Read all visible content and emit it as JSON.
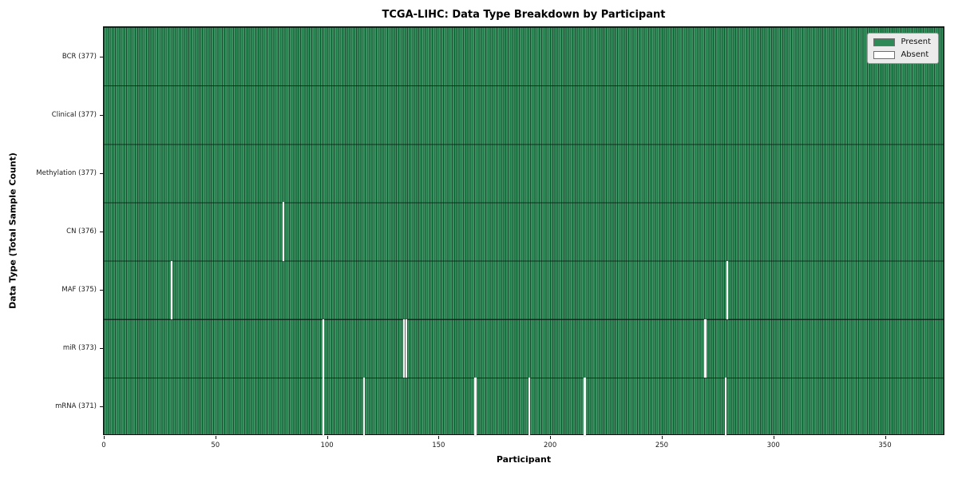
{
  "chart_data": {
    "type": "heatmap",
    "title": "TCGA-LIHC: Data Type Breakdown by Participant",
    "xlabel": "Participant",
    "ylabel": "Data Type (Total Sample Count)",
    "legend_position": "upper right",
    "legend": [
      {
        "name": "present",
        "label": "Present",
        "color": "#2e8b57"
      },
      {
        "name": "absent",
        "label": "Absent",
        "color": "#ffffff"
      }
    ],
    "colors": {
      "present_fill": "#2e8b57",
      "present_stripe_light": "#36935f",
      "cell_edge_dark": "#1e5034",
      "absent_fill": "#f8f8f8",
      "legend_background": "#ebebeb"
    },
    "x_ticks": [
      0,
      50,
      100,
      150,
      200,
      250,
      300,
      350
    ],
    "x_range": [
      0,
      377
    ],
    "n_participants": 377,
    "grid": "cell-edges",
    "rows": [
      {
        "label": "BCR (377)",
        "data_type": "BCR",
        "present_count": 377,
        "absent_participants": []
      },
      {
        "label": "Clinical (377)",
        "data_type": "Clinical",
        "present_count": 377,
        "absent_participants": []
      },
      {
        "label": "Methylation (377)",
        "data_type": "Methylation",
        "present_count": 377,
        "absent_participants": []
      },
      {
        "label": "CN (376)",
        "data_type": "CN",
        "present_count": 376,
        "absent_participants": [
          80
        ]
      },
      {
        "label": "MAF (375)",
        "data_type": "MAF",
        "present_count": 375,
        "absent_participants": [
          30,
          279
        ]
      },
      {
        "label": "miR (373)",
        "data_type": "miR",
        "present_count": 373,
        "absent_participants": [
          98,
          134,
          135,
          269
        ]
      },
      {
        "label": "mRNA (371)",
        "data_type": "mRNA",
        "present_count": 371,
        "absent_participants": [
          98,
          116,
          166,
          190,
          215,
          278
        ]
      }
    ]
  }
}
